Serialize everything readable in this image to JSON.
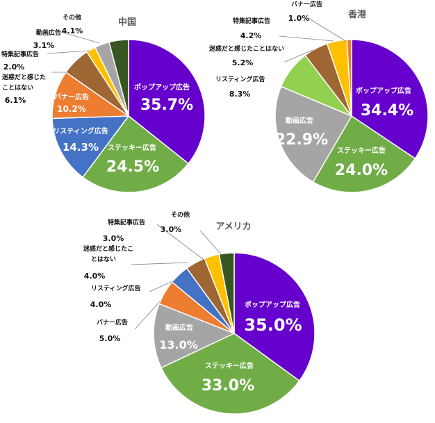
{
  "colors": {
    "popup": "#6600CC",
    "sticky": "#70AD47",
    "listing": "#4472C4",
    "banner": "#ED7D31",
    "annoying": "#9E6633",
    "feature": "#FFC000",
    "video": "#A5A5A5",
    "other": "#375623",
    "light_green": "#92D050"
  },
  "chart_data": [
    {
      "type": "pie",
      "title": "中国",
      "slices": [
        {
          "label": "ポップアップ広告",
          "value": 35.7,
          "value_label": "35.7%",
          "color": "#6600CC"
        },
        {
          "label": "ステッキー広告",
          "value": 24.5,
          "value_label": "24.5%",
          "color": "#70AD47"
        },
        {
          "label": "リスティング広告",
          "value": 14.3,
          "value_label": "14.3%",
          "color": "#4472C4"
        },
        {
          "label": "バナー広告",
          "value": 10.2,
          "value_label": "10.2%",
          "color": "#ED7D31"
        },
        {
          "label": "迷惑だと感じたことはない",
          "value": 6.1,
          "value_label": "6.1%",
          "color": "#9E6633"
        },
        {
          "label": "特集記事広告",
          "value": 2.0,
          "value_label": "2.0%",
          "color": "#FFC000"
        },
        {
          "label": "動画広告",
          "value": 3.1,
          "value_label": "3.1%",
          "color": "#A5A5A5"
        },
        {
          "label": "その他",
          "value": 4.1,
          "value_label": "4.1%",
          "color": "#375623"
        }
      ]
    },
    {
      "type": "pie",
      "title": "香港",
      "slices": [
        {
          "label": "ポップアップ広告",
          "value": 34.4,
          "value_label": "34.4%",
          "color": "#6600CC"
        },
        {
          "label": "ステッキー広告",
          "value": 24.0,
          "value_label": "24.0%",
          "color": "#70AD47"
        },
        {
          "label": "動画広告",
          "value": 22.9,
          "value_label": "22.9%",
          "color": "#A5A5A5"
        },
        {
          "label": "リスティング広告",
          "value": 8.3,
          "value_label": "8.3%",
          "color": "#92D050"
        },
        {
          "label": "迷惑だと感じたことはない",
          "value": 5.2,
          "value_label": "5.2%",
          "color": "#9E6633"
        },
        {
          "label": "特集記事広告",
          "value": 4.2,
          "value_label": "4.2%",
          "color": "#FFC000"
        },
        {
          "label": "バナー広告",
          "value": 1.0,
          "value_label": "1.0%",
          "color": "#ED7D31"
        }
      ]
    },
    {
      "type": "pie",
      "title": "アメリカ",
      "slices": [
        {
          "label": "ポップアップ広告",
          "value": 35.0,
          "value_label": "35.0%",
          "color": "#6600CC"
        },
        {
          "label": "ステッキー広告",
          "value": 33.0,
          "value_label": "33.0%",
          "color": "#70AD47"
        },
        {
          "label": "動画広告",
          "value": 13.0,
          "value_label": "13.0%",
          "color": "#A5A5A5"
        },
        {
          "label": "バナー広告",
          "value": 5.0,
          "value_label": "5.0%",
          "color": "#ED7D31"
        },
        {
          "label": "リスティング広告",
          "value": 4.0,
          "value_label": "4.0%",
          "color": "#4472C4"
        },
        {
          "label": "迷惑だと感じたことはない",
          "value": 4.0,
          "value_label": "4.0%",
          "color": "#9E6633"
        },
        {
          "label": "特集記事広告",
          "value": 3.0,
          "value_label": "3.0%",
          "color": "#FFC000"
        },
        {
          "label": "その他",
          "value": 3.0,
          "value_label": "3.0%",
          "color": "#375623"
        }
      ]
    }
  ]
}
